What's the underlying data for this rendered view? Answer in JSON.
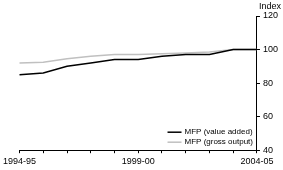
{
  "chart_data": {
    "type": "line",
    "y_label": "Index",
    "categories": [
      "1994-95",
      null,
      null,
      null,
      null,
      "1999-00",
      null,
      null,
      null,
      null,
      "2004-05"
    ],
    "series": [
      {
        "name": "MFP (value added)",
        "color": "#000000",
        "values": [
          85,
          86,
          90,
          92,
          94,
          94,
          96,
          97,
          97,
          100,
          100
        ]
      },
      {
        "name": "MFP (gross output)",
        "color": "#c0c0c0",
        "values": [
          92,
          92.5,
          94.5,
          96,
          97,
          97,
          97.5,
          98,
          98.5,
          100,
          100
        ]
      }
    ],
    "ylim": [
      40,
      120
    ],
    "yticks": [
      40,
      60,
      80,
      100,
      120
    ],
    "grid": false,
    "legend": "lower right"
  }
}
